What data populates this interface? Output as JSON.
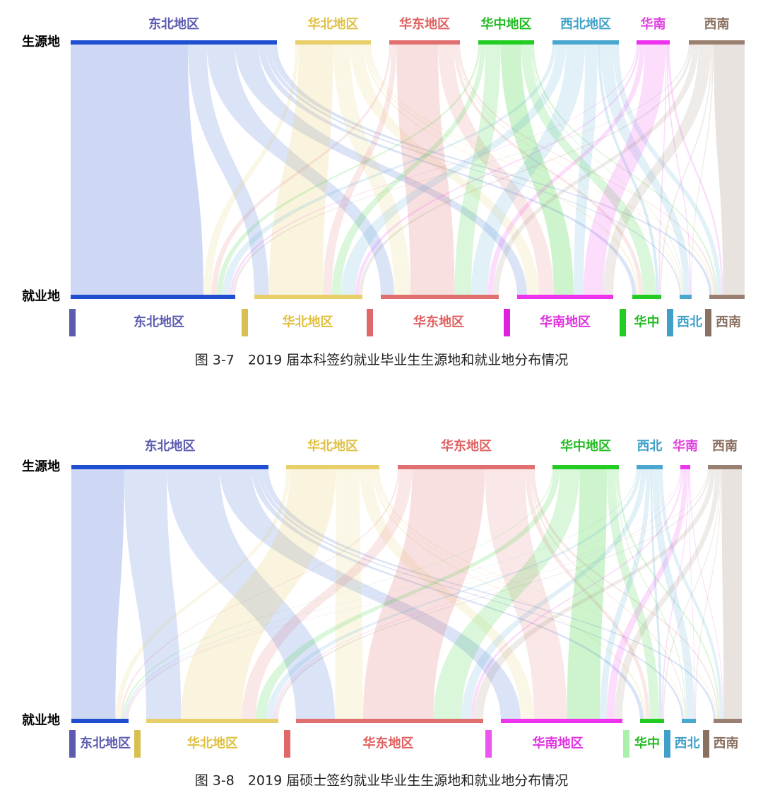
{
  "figures": [
    {
      "row_labels": {
        "source": "生源地",
        "destination": "就业地"
      },
      "sources": [
        {
          "label": "东北地区",
          "color": "#1f4fd0",
          "text_color": "#5b5bb0"
        },
        {
          "label": "华北地区",
          "color": "#e8cf6a",
          "text_color": "#e0c040"
        },
        {
          "label": "华东地区",
          "color": "#e07070",
          "text_color": "#e06060"
        },
        {
          "label": "华中地区",
          "color": "#22cc22",
          "text_color": "#22bb22"
        },
        {
          "label": "西北地区",
          "color": "#4aa8d0",
          "text_color": "#40a0c8"
        },
        {
          "label": "华南",
          "color": "#ee33ee",
          "text_color": "#e040e0"
        },
        {
          "label": "西南",
          "color": "#9a8070",
          "text_color": "#8a7060"
        }
      ],
      "destinations": [
        {
          "label": "东北地区",
          "color": "#1f4fd0",
          "text_color": "#5b5bb0",
          "marker": "#5b5bb0"
        },
        {
          "label": "华北地区",
          "color": "#e8cf6a",
          "text_color": "#e0c040",
          "marker": "#d8c050"
        },
        {
          "label": "华东地区",
          "color": "#e07070",
          "text_color": "#e06060",
          "marker": "#e06868"
        },
        {
          "label": "华南地区",
          "color": "#ee33ee",
          "text_color": "#e030e0",
          "marker": "#e020e0"
        },
        {
          "label": "华中",
          "color": "#22cc22",
          "text_color": "#22bb22",
          "marker": "#22cc22"
        },
        {
          "label": "西北",
          "color": "#4aa8d0",
          "text_color": "#40a0c8",
          "marker": "#40a0c8"
        },
        {
          "label": "西南",
          "color": "#9a8070",
          "text_color": "#8a7060",
          "marker": "#8a7060"
        }
      ],
      "caption": "图 3-7　2019 届本科签约就业毕业生生源地和就业地分布情况"
    },
    {
      "row_labels": {
        "source": "生源地",
        "destination": "就业地"
      },
      "sources": [
        {
          "label": "东北地区",
          "color": "#1f4fd0",
          "text_color": "#5b5bb0"
        },
        {
          "label": "华北地区",
          "color": "#e8cf6a",
          "text_color": "#e0c040"
        },
        {
          "label": "华东地区",
          "color": "#e07070",
          "text_color": "#e06060"
        },
        {
          "label": "华中地区",
          "color": "#22cc22",
          "text_color": "#22bb22"
        },
        {
          "label": "西北",
          "color": "#4aa8d0",
          "text_color": "#40a0c8"
        },
        {
          "label": "华南",
          "color": "#ee33ee",
          "text_color": "#e040e0"
        },
        {
          "label": "西南",
          "color": "#9a8070",
          "text_color": "#8a7060"
        }
      ],
      "destinations": [
        {
          "label": "东北地区",
          "color": "#1f4fd0",
          "text_color": "#5b5bb0",
          "marker": "#5b5bb0"
        },
        {
          "label": "华北地区",
          "color": "#e8cf6a",
          "text_color": "#e0c040",
          "marker": "#d8c050"
        },
        {
          "label": "华东地区",
          "color": "#e07070",
          "text_color": "#e06060",
          "marker": "#e06868"
        },
        {
          "label": "华南地区",
          "color": "#ee33ee",
          "text_color": "#e030e0",
          "marker": "#ee55ee"
        },
        {
          "label": "华中",
          "color": "#22cc22",
          "text_color": "#22bb22",
          "marker": "#aaf0aa"
        },
        {
          "label": "西北",
          "color": "#4aa8d0",
          "text_color": "#40a0c8",
          "marker": "#40a0c8"
        },
        {
          "label": "西南",
          "color": "#9a8070",
          "text_color": "#8a7060",
          "marker": "#8a7060"
        }
      ],
      "caption": "图 3-8　2019 届硕士签约就业毕业生生源地和就业地分布情况"
    }
  ]
}
